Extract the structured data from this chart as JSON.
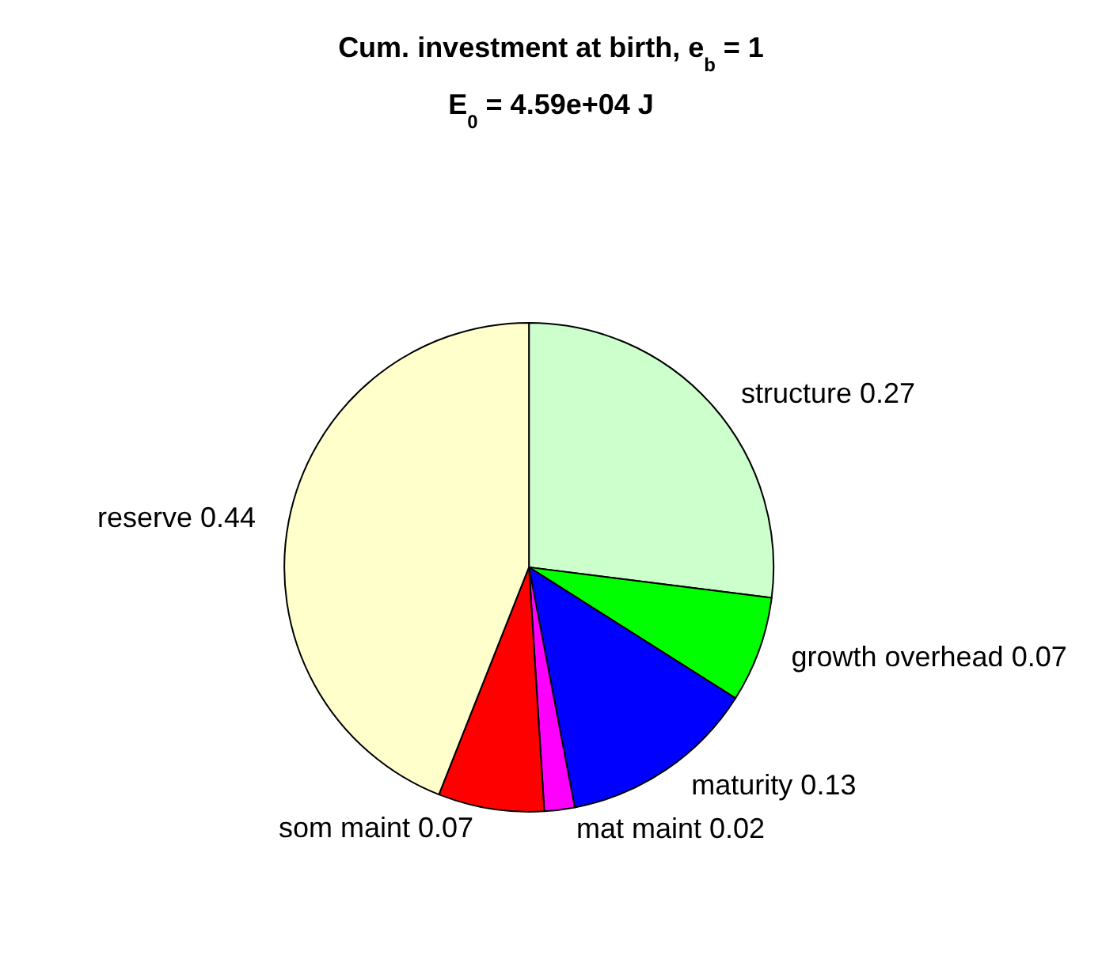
{
  "chart_data": {
    "type": "pie",
    "title": "Cum. investment at birth, e$_{b}$ = 1",
    "subtitle": "E$_{0}$ = 4.59e+04 J",
    "categories": [
      "structure 0.27",
      "growth overhead 0.07",
      "maturity 0.13",
      "mat maint 0.02",
      "som maint 0.07",
      "reserve 0.44"
    ],
    "values": [
      0.27,
      0.07,
      0.13,
      0.02,
      0.07,
      0.44
    ],
    "colors": [
      "#ccffcc",
      "#00ff00",
      "#0000ff",
      "#ff00ff",
      "#ff0000",
      "#ffffcc"
    ],
    "legend": false
  }
}
